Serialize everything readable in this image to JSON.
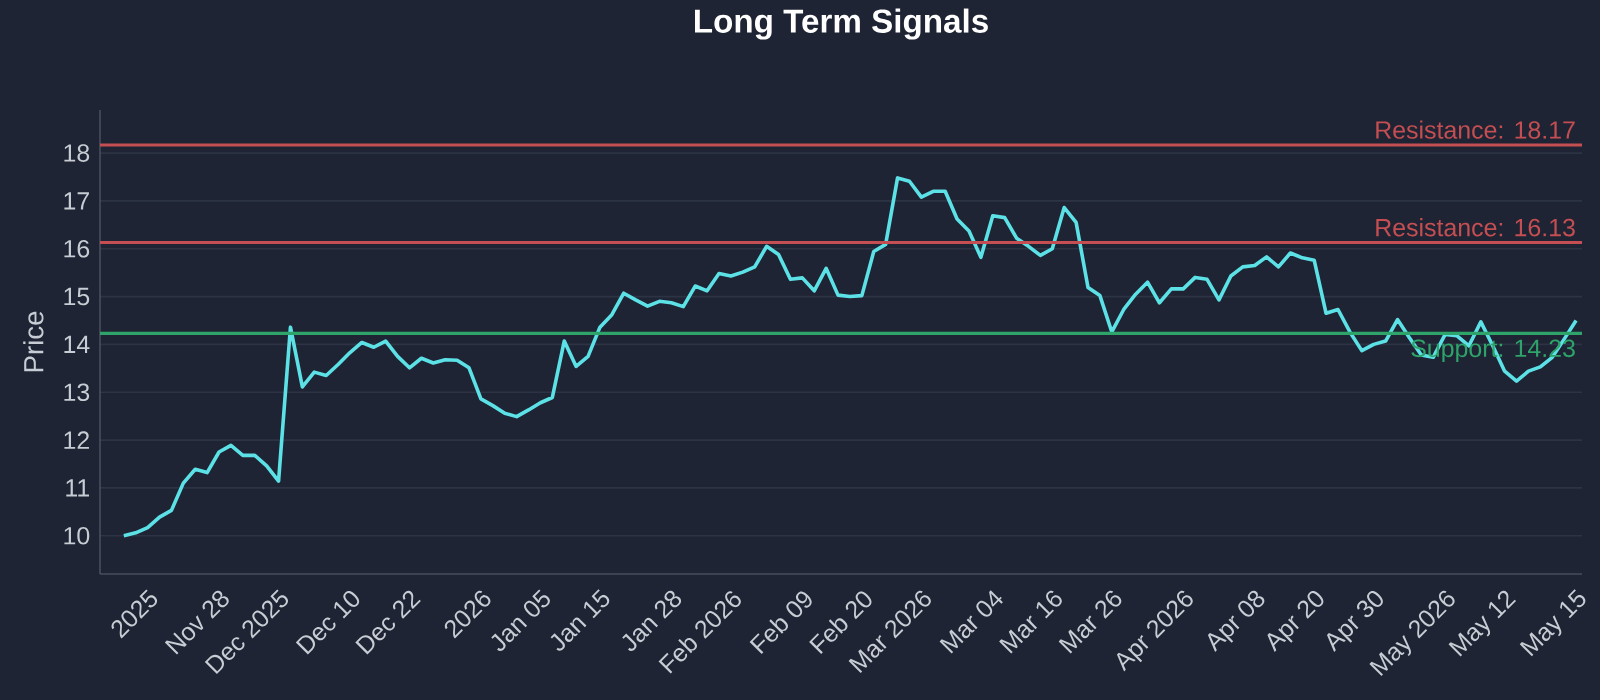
{
  "chart_data": {
    "type": "line",
    "title": "Long Term Signals",
    "ylabel": "Price",
    "categories": [
      null,
      null,
      "2025",
      null,
      null,
      null,
      null,
      null,
      "Nov 28",
      null,
      null,
      null,
      null,
      "Dec 2025",
      null,
      null,
      null,
      null,
      null,
      "Dec 10",
      null,
      null,
      null,
      null,
      "Dec 22",
      null,
      null,
      null,
      null,
      null,
      "2026",
      null,
      null,
      null,
      null,
      "Jan 05",
      null,
      null,
      null,
      null,
      "Jan 15",
      null,
      null,
      null,
      null,
      null,
      "Jan 28",
      null,
      null,
      null,
      null,
      "Feb 2026",
      null,
      null,
      null,
      null,
      null,
      "Feb 09",
      null,
      null,
      null,
      null,
      "Feb 20",
      null,
      null,
      null,
      null,
      "Mar 2026",
      null,
      null,
      null,
      null,
      null,
      "Mar 04",
      null,
      null,
      null,
      null,
      "Mar 16",
      null,
      null,
      null,
      null,
      "Mar 26",
      null,
      null,
      null,
      null,
      null,
      "Apr 2026",
      null,
      null,
      null,
      null,
      null,
      "Apr 08",
      null,
      null,
      null,
      null,
      "Apr 20",
      null,
      null,
      null,
      null,
      "Apr 30",
      null,
      null,
      null,
      null,
      null,
      "May 2026",
      null,
      null,
      null,
      null,
      "May 12",
      null,
      null,
      null,
      null,
      null,
      "May 15"
    ],
    "series": [
      {
        "color": "#5ce1e6",
        "values": [
          10.0,
          10.06,
          10.17,
          10.39,
          10.53,
          11.1,
          11.39,
          11.32,
          11.75,
          11.89,
          11.68,
          11.68,
          11.46,
          11.14,
          14.36,
          13.11,
          13.42,
          13.35,
          13.58,
          13.83,
          14.04,
          13.94,
          14.07,
          13.75,
          13.51,
          13.71,
          13.61,
          13.68,
          13.67,
          13.51,
          12.86,
          12.72,
          12.56,
          12.49,
          12.63,
          12.78,
          12.89,
          14.07,
          13.54,
          13.75,
          14.36,
          14.62,
          15.07,
          14.93,
          14.8,
          14.9,
          14.87,
          14.79,
          15.22,
          15.12,
          15.48,
          15.43,
          15.51,
          15.62,
          16.05,
          15.88,
          15.36,
          15.39,
          15.12,
          15.59,
          15.03,
          15.0,
          15.02,
          15.94,
          16.09,
          17.48,
          17.41,
          17.08,
          17.2,
          17.2,
          16.62,
          16.37,
          15.82,
          16.69,
          16.65,
          16.22,
          16.05,
          15.86,
          16.0,
          16.86,
          16.55,
          15.19,
          15.02,
          14.26,
          14.73,
          15.05,
          15.3,
          14.87,
          15.16,
          15.16,
          15.4,
          15.36,
          14.93,
          15.43,
          15.62,
          15.65,
          15.83,
          15.62,
          15.91,
          15.81,
          15.76,
          14.65,
          14.73,
          14.26,
          13.87,
          14.0,
          14.07,
          14.52,
          14.14,
          13.78,
          13.73,
          14.21,
          14.18,
          13.97,
          14.47,
          13.97,
          13.44,
          13.23,
          13.44,
          13.53,
          13.73,
          14.11,
          14.5
        ]
      }
    ],
    "ylim": [
      9.2,
      18.9
    ],
    "yticks": [
      10,
      11,
      12,
      13,
      14,
      15,
      16,
      17,
      18
    ],
    "grid": "y",
    "line_style": "solid",
    "ref_lines": [
      {
        "axis": "y",
        "value": 18.17,
        "label": "Resistance: 18.17",
        "color": "#c44e52"
      },
      {
        "axis": "y",
        "value": 16.13,
        "label": "Resistance: 16.13",
        "color": "#c44e52"
      },
      {
        "axis": "y",
        "value": 14.23,
        "label": "Support: 14.23",
        "color": "#2ea36a"
      }
    ]
  }
}
